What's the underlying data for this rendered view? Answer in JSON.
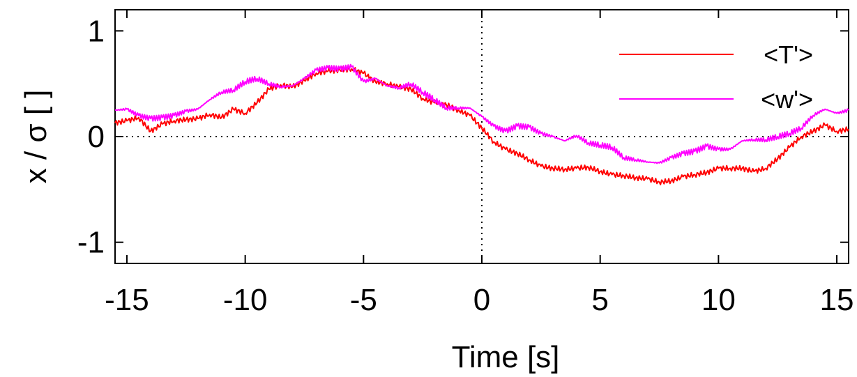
{
  "chart_data": {
    "type": "line",
    "title": "",
    "xlabel": "Time [s]",
    "ylabel": "x / σ [ ]",
    "xlim": [
      -15.5,
      15.5
    ],
    "ylim": [
      -1.2,
      1.2
    ],
    "xticks": [
      -15,
      -10,
      -5,
      0,
      5,
      10,
      15
    ],
    "xtick_labels": [
      "-15",
      "-10",
      "-5",
      "0",
      "5",
      "10",
      "15"
    ],
    "yticks": [
      -1,
      0,
      1
    ],
    "ytick_labels": [
      "-1",
      "0",
      "1"
    ],
    "reference_lines": {
      "y": 0,
      "x": 0,
      "style": "dotted"
    },
    "grid": false,
    "legend_position": "top-right",
    "series": [
      {
        "name": "<T'>",
        "color": "#ff0000",
        "x": [
          -15.5,
          -15,
          -14.5,
          -14,
          -13.5,
          -13,
          -12.5,
          -12,
          -11.5,
          -11,
          -10.5,
          -10,
          -9.5,
          -9,
          -8.5,
          -8,
          -7.5,
          -7,
          -6.5,
          -6,
          -5.5,
          -5,
          -4.5,
          -4,
          -3.5,
          -3,
          -2.5,
          -2,
          -1.5,
          -1,
          -0.5,
          0,
          0.5,
          1,
          1.5,
          2,
          2.5,
          3,
          3.5,
          4,
          4.5,
          5,
          5.5,
          6,
          6.5,
          7,
          7.5,
          8,
          8.5,
          9,
          9.5,
          10,
          10.5,
          11,
          11.5,
          12,
          12.5,
          13,
          13.5,
          14,
          14.5,
          15,
          15.5
        ],
        "values": [
          0.13,
          0.15,
          0.18,
          0.05,
          0.12,
          0.15,
          0.16,
          0.17,
          0.21,
          0.18,
          0.26,
          0.22,
          0.32,
          0.45,
          0.49,
          0.47,
          0.53,
          0.6,
          0.62,
          0.63,
          0.64,
          0.6,
          0.52,
          0.5,
          0.47,
          0.45,
          0.36,
          0.32,
          0.3,
          0.25,
          0.2,
          0.08,
          -0.05,
          -0.12,
          -0.16,
          -0.22,
          -0.28,
          -0.3,
          -0.31,
          -0.3,
          -0.29,
          -0.33,
          -0.36,
          -0.37,
          -0.39,
          -0.4,
          -0.43,
          -0.42,
          -0.38,
          -0.36,
          -0.34,
          -0.3,
          -0.3,
          -0.3,
          -0.33,
          -0.3,
          -0.21,
          -0.1,
          0.0,
          0.05,
          0.11,
          0.05,
          0.07
        ]
      },
      {
        "name": "<w'>",
        "color": "#ff00ff",
        "x": [
          -15.5,
          -15,
          -14.5,
          -14,
          -13.5,
          -13,
          -12.5,
          -12,
          -11.5,
          -11,
          -10.5,
          -10,
          -9.5,
          -9,
          -8.5,
          -8,
          -7.5,
          -7,
          -6.5,
          -6,
          -5.5,
          -5,
          -4.5,
          -4,
          -3.5,
          -3,
          -2.5,
          -2,
          -1.5,
          -1,
          -0.5,
          0,
          0.5,
          1,
          1.5,
          2,
          2.5,
          3,
          3.5,
          4,
          4.5,
          5,
          5.5,
          6,
          6.5,
          7,
          7.5,
          8,
          8.5,
          9,
          9.5,
          10,
          10.5,
          11,
          11.5,
          12,
          12.5,
          13,
          13.5,
          14,
          14.5,
          15,
          15.5
        ],
        "values": [
          0.25,
          0.26,
          0.2,
          0.17,
          0.18,
          0.2,
          0.24,
          0.26,
          0.35,
          0.42,
          0.44,
          0.52,
          0.55,
          0.5,
          0.47,
          0.48,
          0.55,
          0.63,
          0.65,
          0.64,
          0.66,
          0.52,
          0.55,
          0.48,
          0.46,
          0.5,
          0.42,
          0.35,
          0.27,
          0.27,
          0.27,
          0.19,
          0.1,
          0.05,
          0.1,
          0.09,
          0.03,
          0.0,
          -0.04,
          0.01,
          -0.06,
          -0.08,
          -0.1,
          -0.2,
          -0.22,
          -0.24,
          -0.25,
          -0.2,
          -0.16,
          -0.14,
          -0.09,
          -0.12,
          -0.12,
          -0.04,
          -0.03,
          -0.03,
          0.0,
          0.03,
          0.08,
          0.2,
          0.26,
          0.22,
          0.25
        ]
      }
    ]
  }
}
